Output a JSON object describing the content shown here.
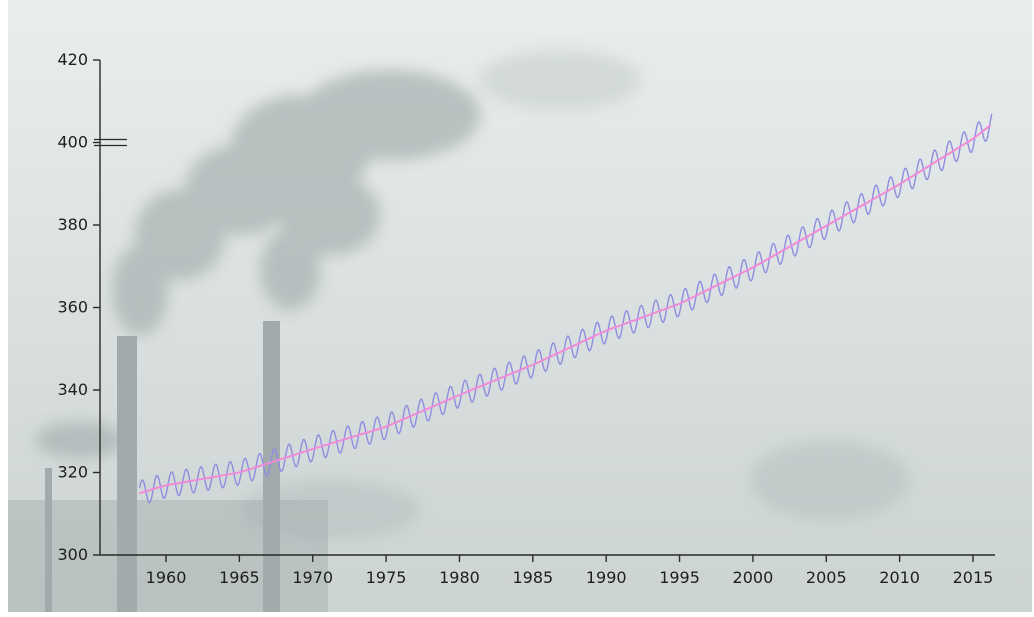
{
  "colors": {
    "background_top": "#e9eded",
    "background_bottom": "#ccd3d3",
    "smoke": "#aab3b3",
    "chimney": "#a2abab",
    "axis": "#2a2a2a",
    "monthly_line": "#8f8de0",
    "trend_line": "#f08bd8"
  },
  "chart_data": {
    "type": "line",
    "title": "",
    "xlabel": "",
    "ylabel": "",
    "xlim": [
      1955.5,
      2016.5
    ],
    "ylim": [
      300,
      420
    ],
    "grid": false,
    "legend": "none",
    "y_axis_break_marker_at": 400,
    "x_ticks": [
      1960,
      1965,
      1970,
      1975,
      1980,
      1985,
      1990,
      1995,
      2000,
      2005,
      2010,
      2015
    ],
    "y_ticks": [
      300,
      320,
      340,
      360,
      380,
      400,
      420
    ],
    "series": [
      {
        "key": "monthly",
        "seasonal_amplitude": 3.0,
        "x": [
          1958.2,
          1960,
          1965,
          1970,
          1975,
          1980,
          1985,
          1990,
          1995,
          2000,
          2005,
          2010,
          2015,
          2016.3
        ],
        "values": [
          315.0,
          316.9,
          320.0,
          325.7,
          331.1,
          338.8,
          346.1,
          354.4,
          360.9,
          369.7,
          379.8,
          389.9,
          400.9,
          404.5
        ]
      },
      {
        "key": "trend",
        "x": [
          1958.2,
          1960,
          1965,
          1970,
          1975,
          1980,
          1985,
          1990,
          1995,
          2000,
          2005,
          2010,
          2015,
          2016.3
        ],
        "values": [
          315.0,
          316.9,
          320.0,
          325.7,
          331.1,
          338.8,
          346.1,
          354.4,
          360.9,
          369.7,
          379.8,
          389.9,
          400.9,
          404.5
        ]
      }
    ]
  }
}
